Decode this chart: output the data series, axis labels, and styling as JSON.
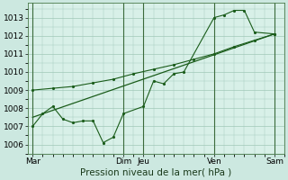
{
  "background_color": "#cce8e0",
  "plot_bg_color": "#d8f0e8",
  "grid_color": "#a0c8b8",
  "line_color": "#1a5c1a",
  "spine_color": "#4a7a4a",
  "title": "Pression niveau de la mer( hPa )",
  "ylim": [
    1005.5,
    1013.8
  ],
  "yticks": [
    1006,
    1007,
    1008,
    1009,
    1010,
    1011,
    1012,
    1013
  ],
  "xtick_labels": [
    "Mar",
    "Dim",
    "Jeu",
    "Ven",
    "Sam"
  ],
  "xtick_positions": [
    0,
    9,
    11,
    18,
    24
  ],
  "xlim": [
    -0.5,
    25.0
  ],
  "series1_x": [
    0,
    1,
    2,
    3,
    4,
    5,
    6,
    7,
    8,
    9,
    11,
    12,
    13,
    14,
    15,
    18,
    19,
    20,
    21,
    22,
    24
  ],
  "series1_y": [
    1007.0,
    1007.7,
    1008.1,
    1007.4,
    1007.2,
    1007.3,
    1007.3,
    1006.1,
    1006.4,
    1007.7,
    1008.1,
    1009.5,
    1009.35,
    1009.9,
    1010.0,
    1013.0,
    1013.15,
    1013.4,
    1013.4,
    1012.2,
    1012.1
  ],
  "series2_x": [
    0,
    2,
    4,
    6,
    8,
    10,
    12,
    14,
    16,
    18,
    20,
    22,
    24
  ],
  "series2_y": [
    1009.0,
    1009.1,
    1009.2,
    1009.4,
    1009.6,
    1009.9,
    1010.15,
    1010.4,
    1010.7,
    1011.0,
    1011.4,
    1011.75,
    1012.1
  ],
  "trend_x": [
    0,
    24
  ],
  "trend_y": [
    1007.5,
    1012.1
  ],
  "vline_positions": [
    0,
    9,
    11,
    18,
    24
  ],
  "vline_color": "#3a6a3a",
  "title_fontsize": 7.5,
  "tick_fontsize": 6.5
}
